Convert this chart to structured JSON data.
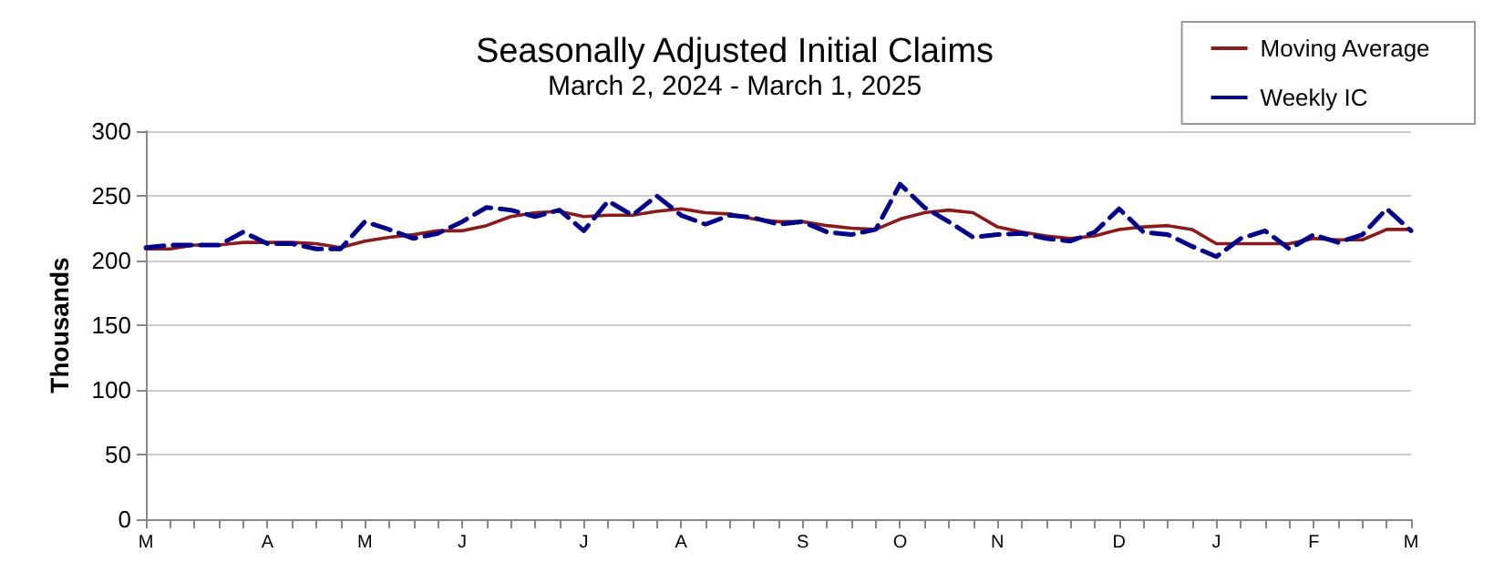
{
  "chart_data": {
    "type": "line",
    "title": "Seasonally Adjusted Initial Claims",
    "subtitle": "March 2, 2024 - March 1, 2025",
    "ylabel": "Thousands",
    "categories": [
      "M",
      null,
      null,
      null,
      null,
      "A",
      null,
      null,
      null,
      "M",
      null,
      null,
      null,
      "J",
      null,
      null,
      null,
      null,
      "J",
      null,
      null,
      null,
      "A",
      null,
      null,
      null,
      null,
      "S",
      null,
      null,
      null,
      "O",
      null,
      null,
      null,
      "N",
      null,
      null,
      null,
      null,
      "D",
      null,
      null,
      null,
      "J",
      null,
      null,
      null,
      "F",
      null,
      null,
      null,
      "M"
    ],
    "series": [
      {
        "name": "Moving Average",
        "color": "#8b1a1a",
        "line_style": "solid",
        "values": [
          209,
          209,
          212,
          212,
          214,
          214,
          214,
          213,
          210,
          215,
          218,
          220,
          223,
          223,
          227,
          234,
          237,
          238,
          234,
          235,
          235,
          238,
          240,
          237,
          236,
          232,
          230,
          230,
          227,
          225,
          224,
          232,
          237,
          239,
          237,
          226,
          222,
          219,
          217,
          219,
          224,
          226,
          227,
          224,
          213,
          213,
          213,
          213,
          217,
          216,
          216,
          224,
          224
        ]
      },
      {
        "name": "Weekly IC",
        "color": "#00008b",
        "line_style": "dashed",
        "values": [
          210,
          212,
          212,
          212,
          222,
          213,
          213,
          209,
          209,
          230,
          224,
          217,
          221,
          230,
          241,
          239,
          234,
          239,
          223,
          246,
          235,
          250,
          235,
          228,
          235,
          233,
          228,
          230,
          222,
          220,
          224,
          259,
          241,
          230,
          218,
          220,
          221,
          217,
          215,
          222,
          240,
          222,
          220,
          211,
          203,
          217,
          223,
          209,
          220,
          214,
          220,
          240,
          223
        ]
      }
    ],
    "ylim": [
      0,
      300
    ],
    "yticks": [
      0,
      50,
      100,
      150,
      200,
      250,
      300
    ],
    "grid": "y",
    "legend": "top right",
    "marker": "none"
  }
}
